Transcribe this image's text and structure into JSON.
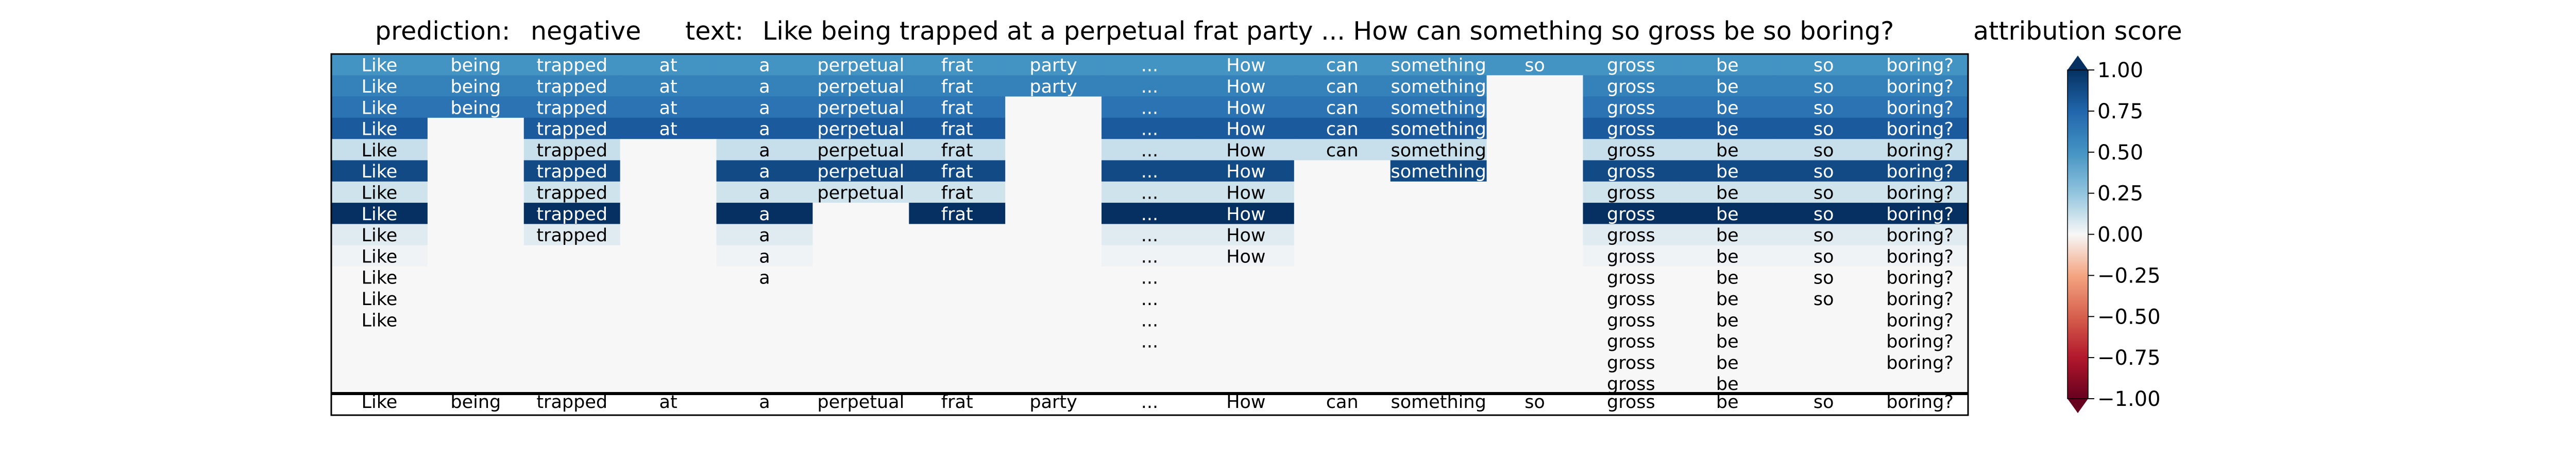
{
  "header": {
    "prediction_label": "prediction:",
    "prediction_value": "negative",
    "text_label": "text:",
    "text_value": "Like being trapped at a perpetual frat party ... How can something so gross be so boring?",
    "colorbar_title": "attribution score"
  },
  "chart_data": {
    "type": "heatmap",
    "tokens": [
      "Like",
      "being",
      "trapped",
      "at",
      "a",
      "perpetual",
      "frat",
      "party",
      "...",
      "How",
      "can",
      "something",
      "so",
      "gross",
      "be",
      "so",
      "boring?"
    ],
    "baseline_tokens": [
      "Like",
      "being",
      "trapped",
      "at",
      "a",
      "perpetual",
      "frat",
      "party",
      "...",
      "How",
      "can",
      "something",
      "so",
      "gross",
      "be",
      "so",
      "boring?"
    ],
    "masked_value": 0.0,
    "rows": [
      {
        "score": 0.5,
        "present": [
          1,
          1,
          1,
          1,
          1,
          1,
          1,
          1,
          1,
          1,
          1,
          1,
          1,
          1,
          1,
          1,
          1
        ]
      },
      {
        "score": 0.6,
        "present": [
          1,
          1,
          1,
          1,
          1,
          1,
          1,
          1,
          1,
          1,
          1,
          1,
          0,
          1,
          1,
          1,
          1
        ]
      },
      {
        "score": 0.68,
        "present": [
          1,
          1,
          1,
          1,
          1,
          1,
          1,
          0,
          1,
          1,
          1,
          1,
          0,
          1,
          1,
          1,
          1
        ]
      },
      {
        "score": 0.8,
        "present": [
          1,
          0,
          1,
          1,
          1,
          1,
          1,
          0,
          1,
          1,
          1,
          1,
          0,
          1,
          1,
          1,
          1
        ]
      },
      {
        "score": 0.12,
        "present": [
          1,
          0,
          1,
          0,
          1,
          1,
          1,
          0,
          1,
          1,
          1,
          1,
          0,
          1,
          1,
          1,
          1
        ]
      },
      {
        "score": 0.88,
        "present": [
          1,
          0,
          1,
          0,
          1,
          1,
          1,
          0,
          1,
          1,
          0,
          1,
          0,
          1,
          1,
          1,
          1
        ]
      },
      {
        "score": 0.1,
        "present": [
          1,
          0,
          1,
          0,
          1,
          1,
          1,
          0,
          1,
          1,
          0,
          0,
          0,
          1,
          1,
          1,
          1
        ]
      },
      {
        "score": 1.0,
        "present": [
          1,
          0,
          1,
          0,
          1,
          0,
          1,
          0,
          1,
          1,
          0,
          0,
          0,
          1,
          1,
          1,
          1
        ]
      },
      {
        "score": 0.06,
        "present": [
          1,
          0,
          1,
          0,
          1,
          0,
          0,
          0,
          1,
          1,
          0,
          0,
          0,
          1,
          1,
          1,
          1
        ]
      },
      {
        "score": 0.02,
        "present": [
          1,
          0,
          0,
          0,
          1,
          0,
          0,
          0,
          1,
          1,
          0,
          0,
          0,
          1,
          1,
          1,
          1
        ]
      },
      {
        "score": 0.0,
        "present": [
          1,
          0,
          0,
          0,
          1,
          0,
          0,
          0,
          1,
          0,
          0,
          0,
          0,
          1,
          1,
          1,
          1
        ]
      },
      {
        "score": 0.0,
        "present": [
          1,
          0,
          0,
          0,
          0,
          0,
          0,
          0,
          1,
          0,
          0,
          0,
          0,
          1,
          1,
          1,
          1
        ]
      },
      {
        "score": 0.0,
        "present": [
          1,
          0,
          0,
          0,
          0,
          0,
          0,
          0,
          1,
          0,
          0,
          0,
          0,
          1,
          1,
          0,
          1
        ]
      },
      {
        "score": 0.0,
        "present": [
          0,
          0,
          0,
          0,
          0,
          0,
          0,
          0,
          1,
          0,
          0,
          0,
          0,
          1,
          1,
          0,
          1
        ]
      },
      {
        "score": 0.0,
        "present": [
          0,
          0,
          0,
          0,
          0,
          0,
          0,
          0,
          0,
          0,
          0,
          0,
          0,
          1,
          1,
          0,
          1
        ]
      },
      {
        "score": 0.0,
        "present": [
          0,
          0,
          0,
          0,
          0,
          0,
          0,
          0,
          0,
          0,
          0,
          0,
          0,
          1,
          1,
          0,
          0
        ]
      }
    ],
    "colorbar": {
      "vmin": -1.0,
      "vmax": 1.0,
      "ticks": [
        1.0,
        0.75,
        0.5,
        0.25,
        0.0,
        -0.25,
        -0.5,
        -0.75,
        -1.0
      ],
      "tick_labels": [
        "1.00",
        "0.75",
        "0.50",
        "0.25",
        "0.00",
        "−0.25",
        "−0.50",
        "−0.75",
        "−1.00"
      ],
      "colormap": "RdBu",
      "colors": {
        "-1.0": "#67001f",
        "-0.75": "#b2182b",
        "-0.5": "#d6604d",
        "-0.25": "#f4a582",
        "0.0": "#f7f7f7",
        "0.25": "#92c5de",
        "0.5": "#4393c3",
        "0.75": "#2166ac",
        "1.0": "#053061"
      }
    }
  }
}
